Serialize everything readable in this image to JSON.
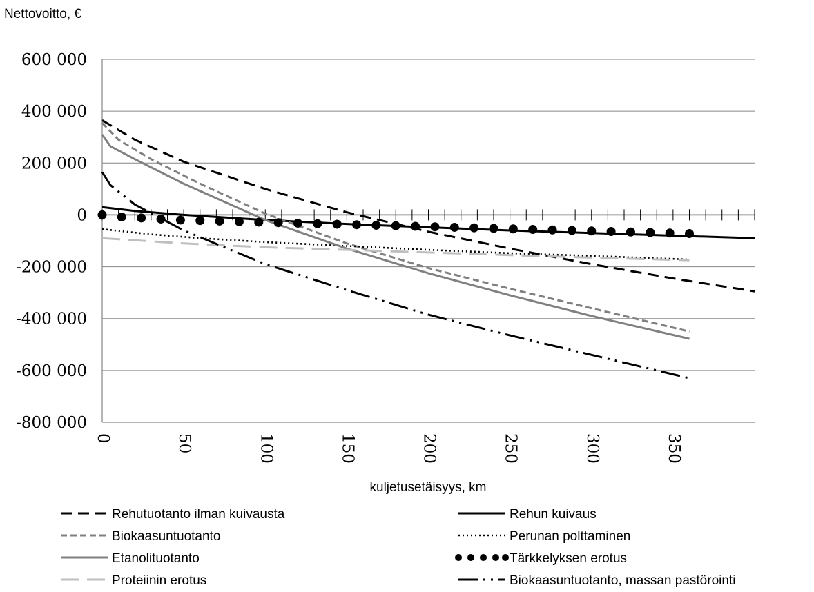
{
  "chart_data": {
    "type": "line",
    "ylabel": "Nettovoitto, €",
    "xlabel": "kuljetusetäisyys, km",
    "xlim": [
      0,
      400
    ],
    "ylim": [
      -800000,
      600000
    ],
    "x_ticks": [
      "0",
      "50",
      "100",
      "150",
      "200",
      "250",
      "300",
      "350"
    ],
    "x_tick_values": [
      0,
      50,
      100,
      150,
      200,
      250,
      300,
      350
    ],
    "y_ticks": [
      "600 000",
      "400 000",
      "200 000",
      "0",
      "-200 000",
      "-400 000",
      "-600 000",
      "-800 000"
    ],
    "y_tick_values": [
      600000,
      400000,
      200000,
      0,
      -200000,
      -400000,
      -600000,
      -800000
    ],
    "grid": "horizontal",
    "legend_position": "bottom",
    "series": [
      {
        "name": "Rehutuotanto ilman kuivausta",
        "style": "dashed",
        "color": "#000000",
        "x": [
          0,
          20,
          50,
          100,
          150,
          200,
          250,
          300,
          350,
          400
        ],
        "y": [
          365000,
          290000,
          205000,
          100000,
          10000,
          -65000,
          -130000,
          -190000,
          -245000,
          -295000
        ]
      },
      {
        "name": "Rehun kuivaus",
        "style": "solid",
        "color": "#000000",
        "x": [
          0,
          20,
          50,
          100,
          150,
          200,
          250,
          300,
          350,
          400
        ],
        "y": [
          30000,
          15000,
          0,
          -20000,
          -35000,
          -48000,
          -60000,
          -70000,
          -80000,
          -90000
        ]
      },
      {
        "name": "Biokaasuntuotanto",
        "style": "short-dash",
        "color": "#808080",
        "x": [
          0,
          10,
          30,
          60,
          100,
          150,
          200,
          250,
          300,
          360
        ],
        "y": [
          355000,
          290000,
          215000,
          120000,
          5000,
          -110000,
          -205000,
          -285000,
          -360000,
          -450000
        ]
      },
      {
        "name": "Perunan polttaminen",
        "style": "dotted",
        "color": "#000000",
        "x": [
          0,
          30,
          60,
          100,
          150,
          200,
          250,
          300,
          360
        ],
        "y": [
          -55000,
          -75000,
          -90000,
          -105000,
          -120000,
          -135000,
          -148000,
          -158000,
          -172000
        ]
      },
      {
        "name": "Etanolituotanto",
        "style": "solid",
        "color": "#808080",
        "x": [
          0,
          5,
          20,
          50,
          100,
          150,
          200,
          250,
          300,
          360
        ],
        "y": [
          310000,
          265000,
          215000,
          120000,
          -20000,
          -130000,
          -225000,
          -310000,
          -390000,
          -478000
        ]
      },
      {
        "name": "Tärkkelyksen erotus",
        "style": "dots",
        "color": "#000000",
        "x": [
          0,
          12,
          24,
          36,
          48,
          60,
          72,
          84,
          96,
          108,
          120,
          132,
          144,
          156,
          168,
          180,
          192,
          204,
          216,
          228,
          240,
          252,
          264,
          276,
          288,
          300,
          312,
          324,
          336,
          348,
          360
        ],
        "y": [
          0,
          -8000,
          -12000,
          -16000,
          -20000,
          -22000,
          -24000,
          -26000,
          -28000,
          -30000,
          -32000,
          -34000,
          -36000,
          -38000,
          -40000,
          -42000,
          -44000,
          -46000,
          -48000,
          -50000,
          -52000,
          -54000,
          -56000,
          -58000,
          -60000,
          -62000,
          -64000,
          -66000,
          -68000,
          -70000,
          -72000
        ]
      },
      {
        "name": "Proteiinin erotus",
        "style": "long-dash",
        "color": "#bfbfbf",
        "x": [
          0,
          50,
          100,
          150,
          200,
          250,
          300,
          360
        ],
        "y": [
          -90000,
          -110000,
          -125000,
          -135000,
          -145000,
          -155000,
          -165000,
          -175000
        ]
      },
      {
        "name": "Biokaasuntuotanto, massan pastörointi",
        "style": "dash-dot-dot",
        "color": "#000000",
        "x": [
          0,
          5,
          20,
          50,
          100,
          150,
          200,
          250,
          300,
          360
        ],
        "y": [
          165000,
          115000,
          40000,
          -60000,
          -190000,
          -290000,
          -385000,
          -465000,
          -540000,
          -630000
        ]
      }
    ]
  }
}
